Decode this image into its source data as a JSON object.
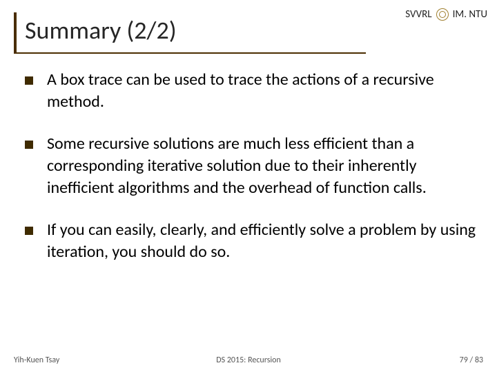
{
  "header": {
    "left": "SVVRL",
    "right": "IM. NTU"
  },
  "title": "Summary (2/2)",
  "bullets": [
    "A box trace can be used to trace the actions of a recursive method.",
    "Some recursive solutions are much less efficient than a corresponding iterative solution due to their inherently inefficient algorithms and the overhead of function calls.",
    "If you can easily, clearly, and efficiently solve a problem by using iteration, you should do so."
  ],
  "footer": {
    "left": "Yih-Kuen Tsay",
    "center": "DS 2015: Recursion",
    "right": "79 / 83"
  },
  "colors": {
    "title_border": "#4a2d00",
    "bullet": "#3f2b00",
    "text": "#000000",
    "background": "#ffffff"
  },
  "typography": {
    "title_fontsize": 36,
    "body_fontsize": 24,
    "header_fontsize": 15,
    "footer_fontsize": 12
  }
}
